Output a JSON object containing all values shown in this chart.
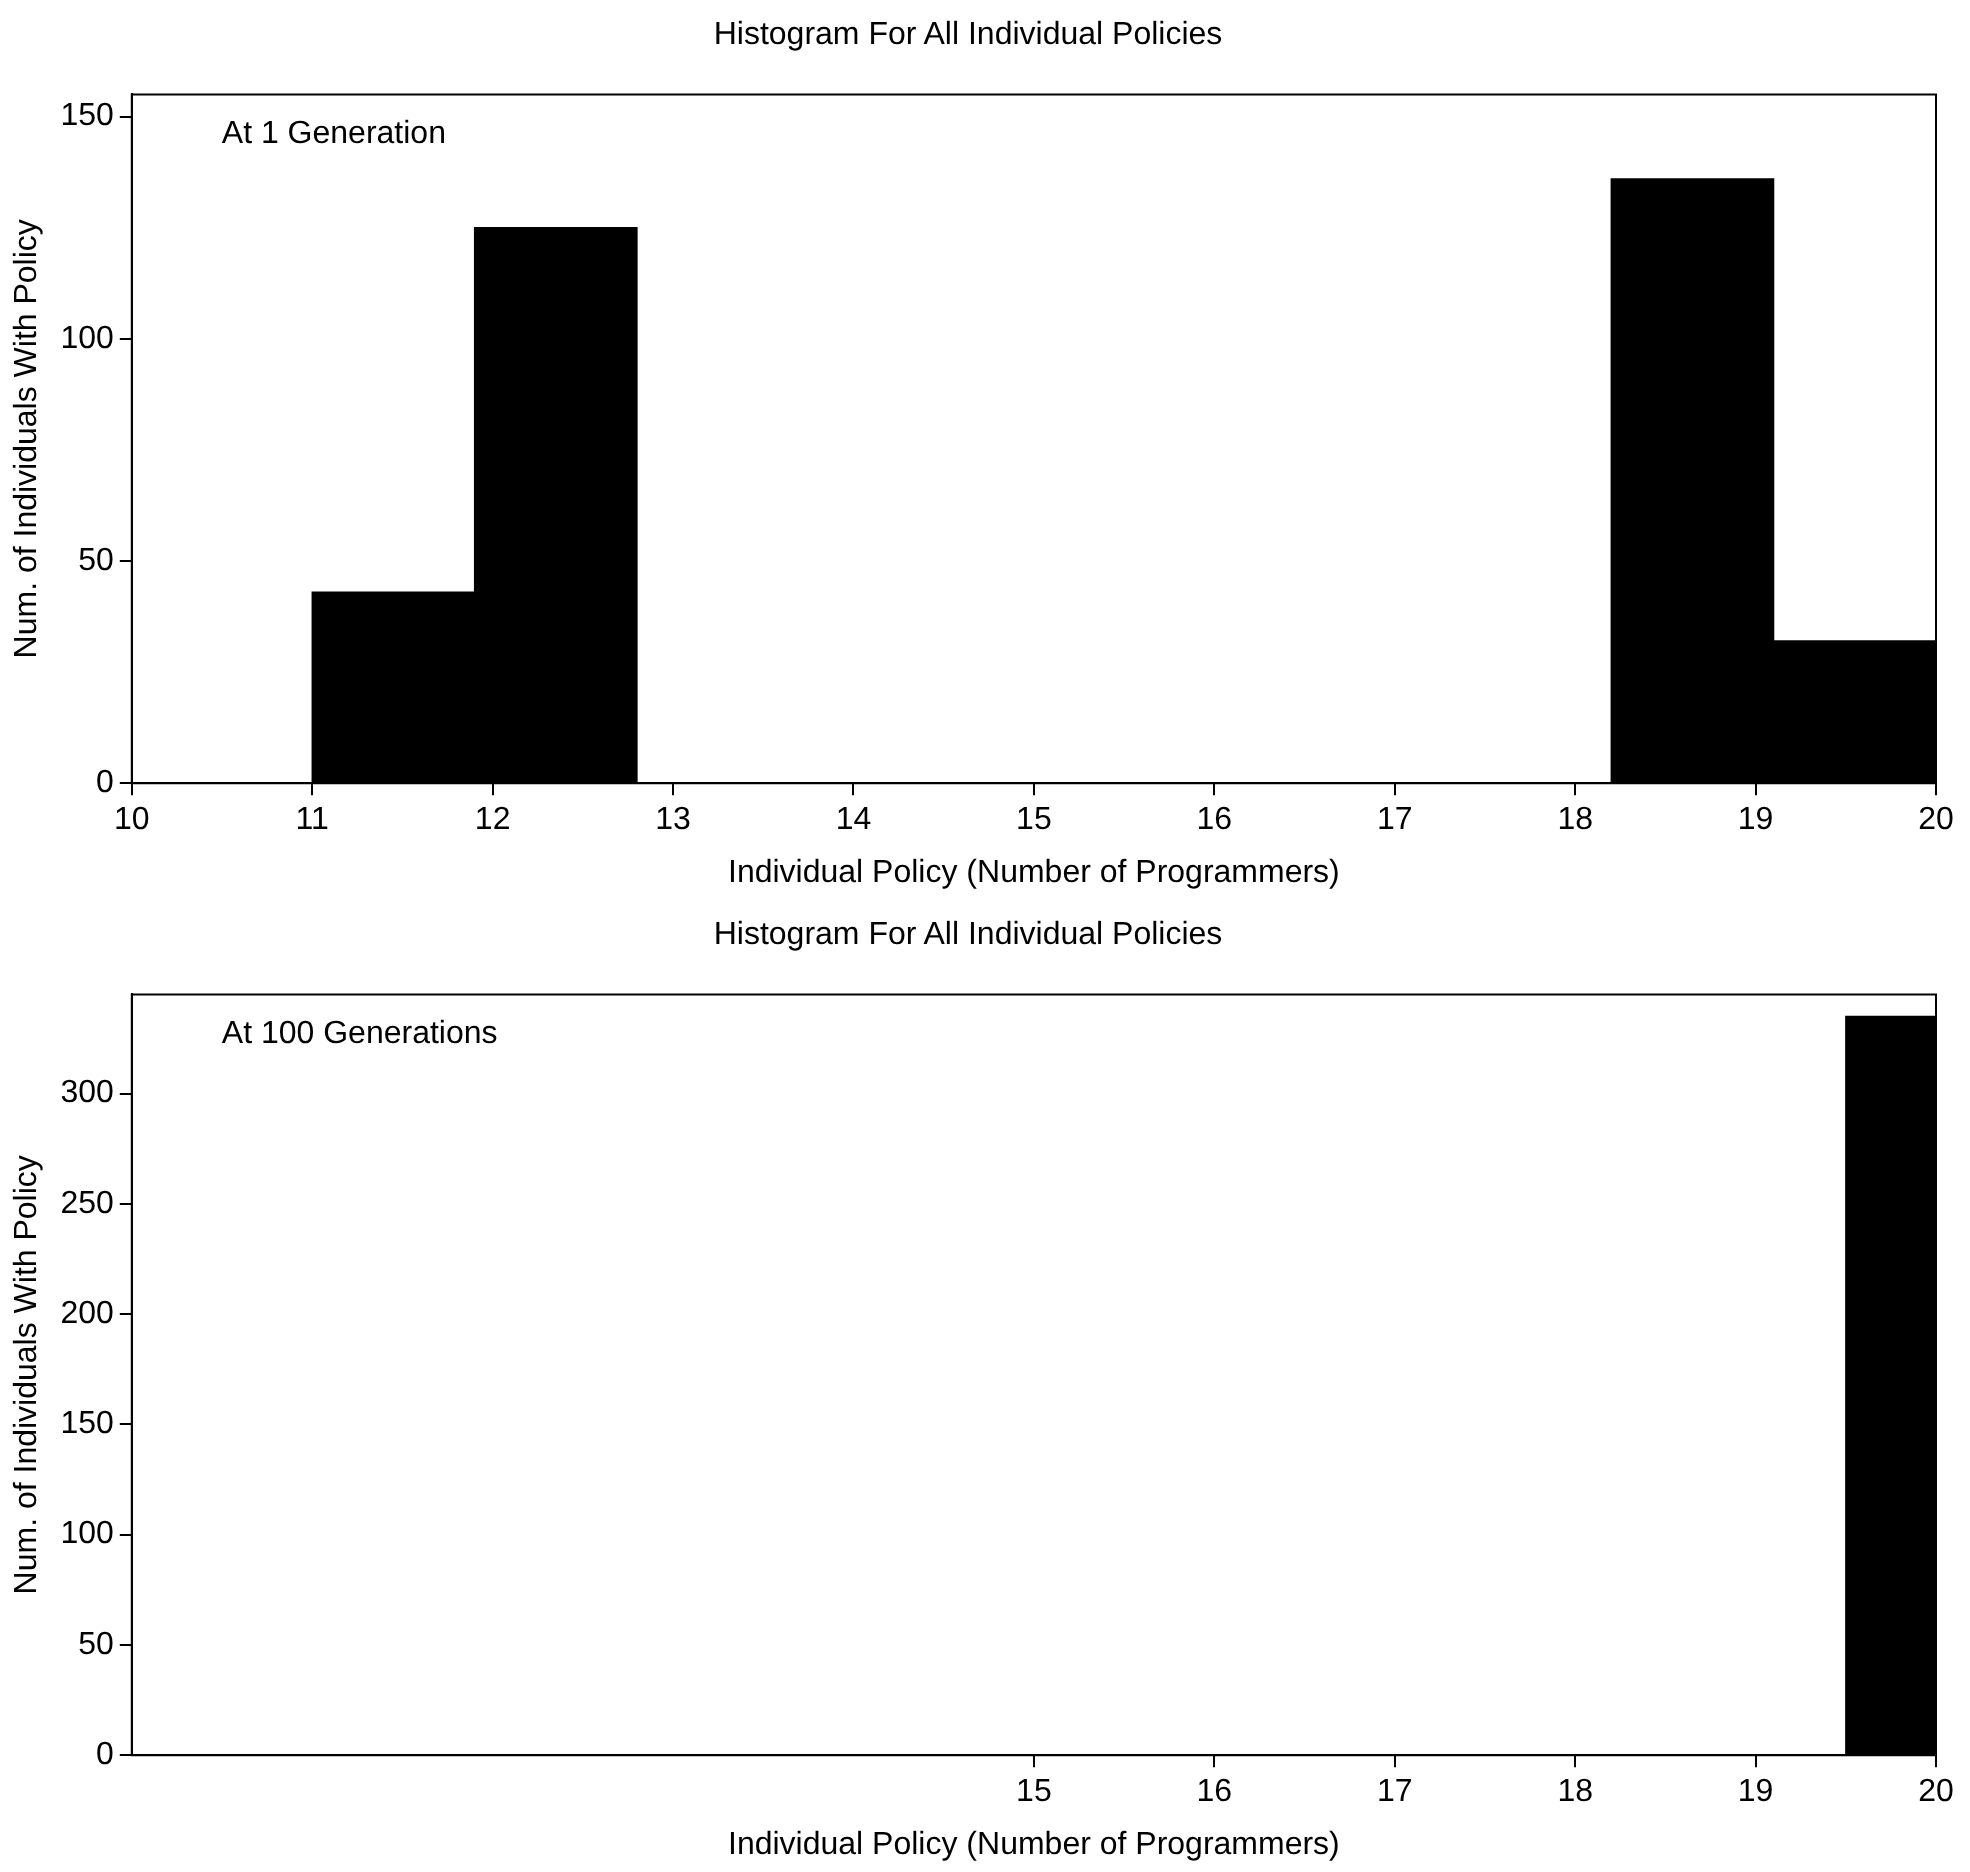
{
  "chart_data": [
    {
      "type": "histogram",
      "title": "Histogram For All Individual Policies",
      "xlabel": "Individual Policy (Number of Programmers)",
      "ylabel": "Num. of Individuals With Policy",
      "annotations": [
        "At 1 Generation"
      ],
      "bins": [
        11,
        11.9,
        12.8,
        13.7,
        14.6,
        15.5,
        16.4,
        17.3,
        18.2,
        19.1,
        20
      ],
      "values": [
        43,
        125,
        0,
        0,
        0,
        0,
        0,
        0,
        136,
        32
      ],
      "color": "#000000",
      "xlim": [
        10,
        20
      ],
      "xticks": [
        10,
        11,
        12,
        13,
        14,
        15,
        16,
        17,
        18,
        19,
        20
      ],
      "ylim": [
        0,
        155
      ],
      "yticks": [
        0,
        50,
        100,
        150
      ],
      "grid": false
    },
    {
      "type": "histogram",
      "title": "Histogram For All Individual Policies",
      "xlabel": "Individual Policy (Number of Programmers)",
      "ylabel": "Num. of Individuals With Policy",
      "annotations": [
        "At 100 Generations"
      ],
      "bins": [
        19.5,
        20
      ],
      "values": [
        335
      ],
      "color": "#000000",
      "xlim": [
        10,
        20
      ],
      "xticks": [
        15,
        16,
        17,
        18,
        19,
        20
      ],
      "ylim": [
        0,
        345
      ],
      "yticks": [
        0,
        50,
        100,
        150,
        200,
        250,
        300
      ],
      "grid": false
    }
  ]
}
